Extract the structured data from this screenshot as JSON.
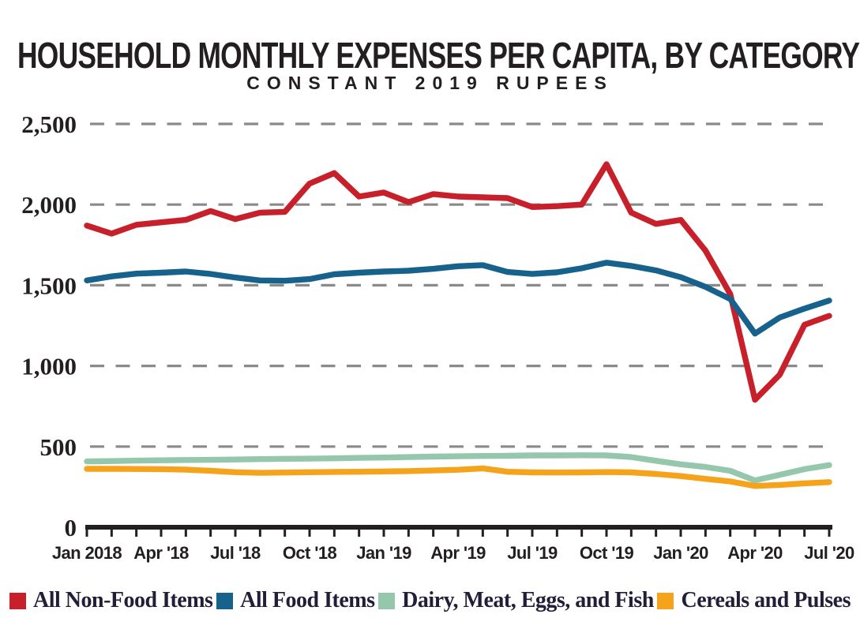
{
  "header": {
    "title": "HOUSEHOLD MONTHLY EXPENSES PER CAPITA, BY CATEGORY",
    "subtitle": "CONSTANT 2019 RUPEES"
  },
  "chart_data": {
    "type": "line",
    "title": "HOUSEHOLD MONTHLY EXPENSES PER CAPITA, BY CATEGORY",
    "subtitle": "CONSTANT 2019 RUPEES",
    "x_unit": "month",
    "x": [
      "Jan 2018",
      "Feb 2018",
      "Mar 2018",
      "Apr 2018",
      "May 2018",
      "Jun 2018",
      "Jul 2018",
      "Aug 2018",
      "Sep 2018",
      "Oct 2018",
      "Nov 2018",
      "Dec 2018",
      "Jan 2019",
      "Feb 2019",
      "Mar 2019",
      "Apr 2019",
      "May 2019",
      "Jun 2019",
      "Jul 2019",
      "Aug 2019",
      "Sep 2019",
      "Oct 2019",
      "Nov 2019",
      "Dec 2019",
      "Jan 2020",
      "Feb 2020",
      "Mar 2020",
      "Apr 2020",
      "May 2020",
      "Jun 2020",
      "Jul 2020"
    ],
    "x_tick_labels": [
      {
        "index": 0,
        "label": "Jan 2018"
      },
      {
        "index": 3,
        "label": "Apr '18"
      },
      {
        "index": 6,
        "label": "Jul '18"
      },
      {
        "index": 9,
        "label": "Oct '18"
      },
      {
        "index": 12,
        "label": "Jan '19"
      },
      {
        "index": 15,
        "label": "Apr '19"
      },
      {
        "index": 18,
        "label": "Jul '19"
      },
      {
        "index": 21,
        "label": "Oct '19"
      },
      {
        "index": 24,
        "label": "Jan '20"
      },
      {
        "index": 27,
        "label": "Apr '20"
      },
      {
        "index": 30,
        "label": "Jul '20"
      }
    ],
    "y_ticks": [
      {
        "value": 0,
        "label": "0"
      },
      {
        "value": 500,
        "label": "500"
      },
      {
        "value": 1000,
        "label": "1,000"
      },
      {
        "value": 1500,
        "label": "1,500"
      },
      {
        "value": 2000,
        "label": "2,000"
      },
      {
        "value": 2500,
        "label": "2,500"
      }
    ],
    "ylim": [
      0,
      2500
    ],
    "grid": "horizontal-dashed",
    "legend_position": "bottom",
    "series": [
      {
        "name": "All Non-Food Items",
        "color": "#c8202a",
        "values": [
          1870,
          1820,
          1875,
          1890,
          1905,
          1960,
          1910,
          1950,
          1955,
          2130,
          2195,
          2050,
          2075,
          2015,
          2065,
          2050,
          2045,
          2040,
          1985,
          1990,
          2000,
          2250,
          1950,
          1880,
          1905,
          1715,
          1445,
          790,
          945,
          1255,
          1310
        ]
      },
      {
        "name": "All Food Items",
        "color": "#17618d",
        "values": [
          1530,
          1555,
          1572,
          1578,
          1585,
          1570,
          1548,
          1530,
          1528,
          1538,
          1568,
          1578,
          1585,
          1590,
          1602,
          1618,
          1625,
          1582,
          1570,
          1580,
          1605,
          1640,
          1620,
          1592,
          1550,
          1490,
          1415,
          1200,
          1300,
          1355,
          1405
        ]
      },
      {
        "name": "Dairy, Meat, Eggs, and Fish",
        "color": "#95c7ad",
        "values": [
          408,
          410,
          413,
          415,
          417,
          418,
          420,
          422,
          424,
          425,
          427,
          430,
          432,
          435,
          438,
          440,
          442,
          443,
          445,
          445,
          446,
          445,
          435,
          412,
          390,
          374,
          350,
          290,
          325,
          360,
          385
        ]
      },
      {
        "name": "Cereals and Pulses",
        "color": "#f6a31c",
        "values": [
          362,
          362,
          361,
          360,
          357,
          350,
          341,
          337,
          339,
          341,
          343,
          344,
          346,
          348,
          352,
          356,
          365,
          344,
          340,
          339,
          340,
          342,
          340,
          330,
          317,
          300,
          284,
          256,
          262,
          272,
          280
        ]
      }
    ]
  }
}
